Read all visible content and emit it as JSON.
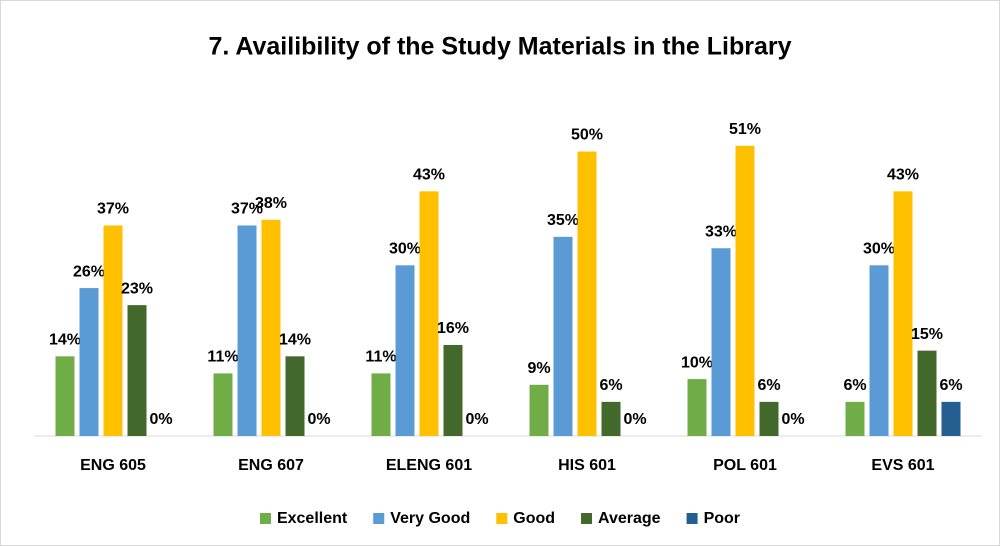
{
  "chart_data": {
    "type": "bar",
    "title": "7. Availibility of the Study Materials in the Library",
    "categories": [
      "ENG 605",
      "ENG 607",
      "ELENG 601",
      "HIS 601",
      "POL 601",
      "EVS 601"
    ],
    "ylim": [
      0,
      60
    ],
    "legend": "bottom",
    "series": [
      {
        "name": "Excellent",
        "color": "#70ad47",
        "values": [
          14,
          11,
          11,
          9,
          10,
          6
        ],
        "value_labels": [
          "14%",
          "11%",
          "11%",
          "9%",
          "10%",
          "6%"
        ]
      },
      {
        "name": "Very Good",
        "color": "#5b9bd5",
        "values": [
          26,
          37,
          30,
          35,
          33,
          30
        ],
        "value_labels": [
          "26%",
          "37%",
          "30%",
          "35%",
          "33%",
          "30%"
        ]
      },
      {
        "name": "Good",
        "color": "#ffc000",
        "values": [
          37,
          38,
          43,
          50,
          51,
          43
        ],
        "value_labels": [
          "37%",
          "38%",
          "43%",
          "50%",
          "51%",
          "43%"
        ]
      },
      {
        "name": "Average",
        "color": "#43682b",
        "values": [
          23,
          14,
          16,
          6,
          6,
          15
        ],
        "value_labels": [
          "23%",
          "14%",
          "16%",
          "6%",
          "6%",
          "15%"
        ]
      },
      {
        "name": "Poor",
        "color": "#255e91",
        "values": [
          0,
          0,
          0,
          0,
          0,
          6
        ],
        "value_labels": [
          "0%",
          "0%",
          "0%",
          "0%",
          "0%",
          "6%"
        ]
      }
    ]
  }
}
